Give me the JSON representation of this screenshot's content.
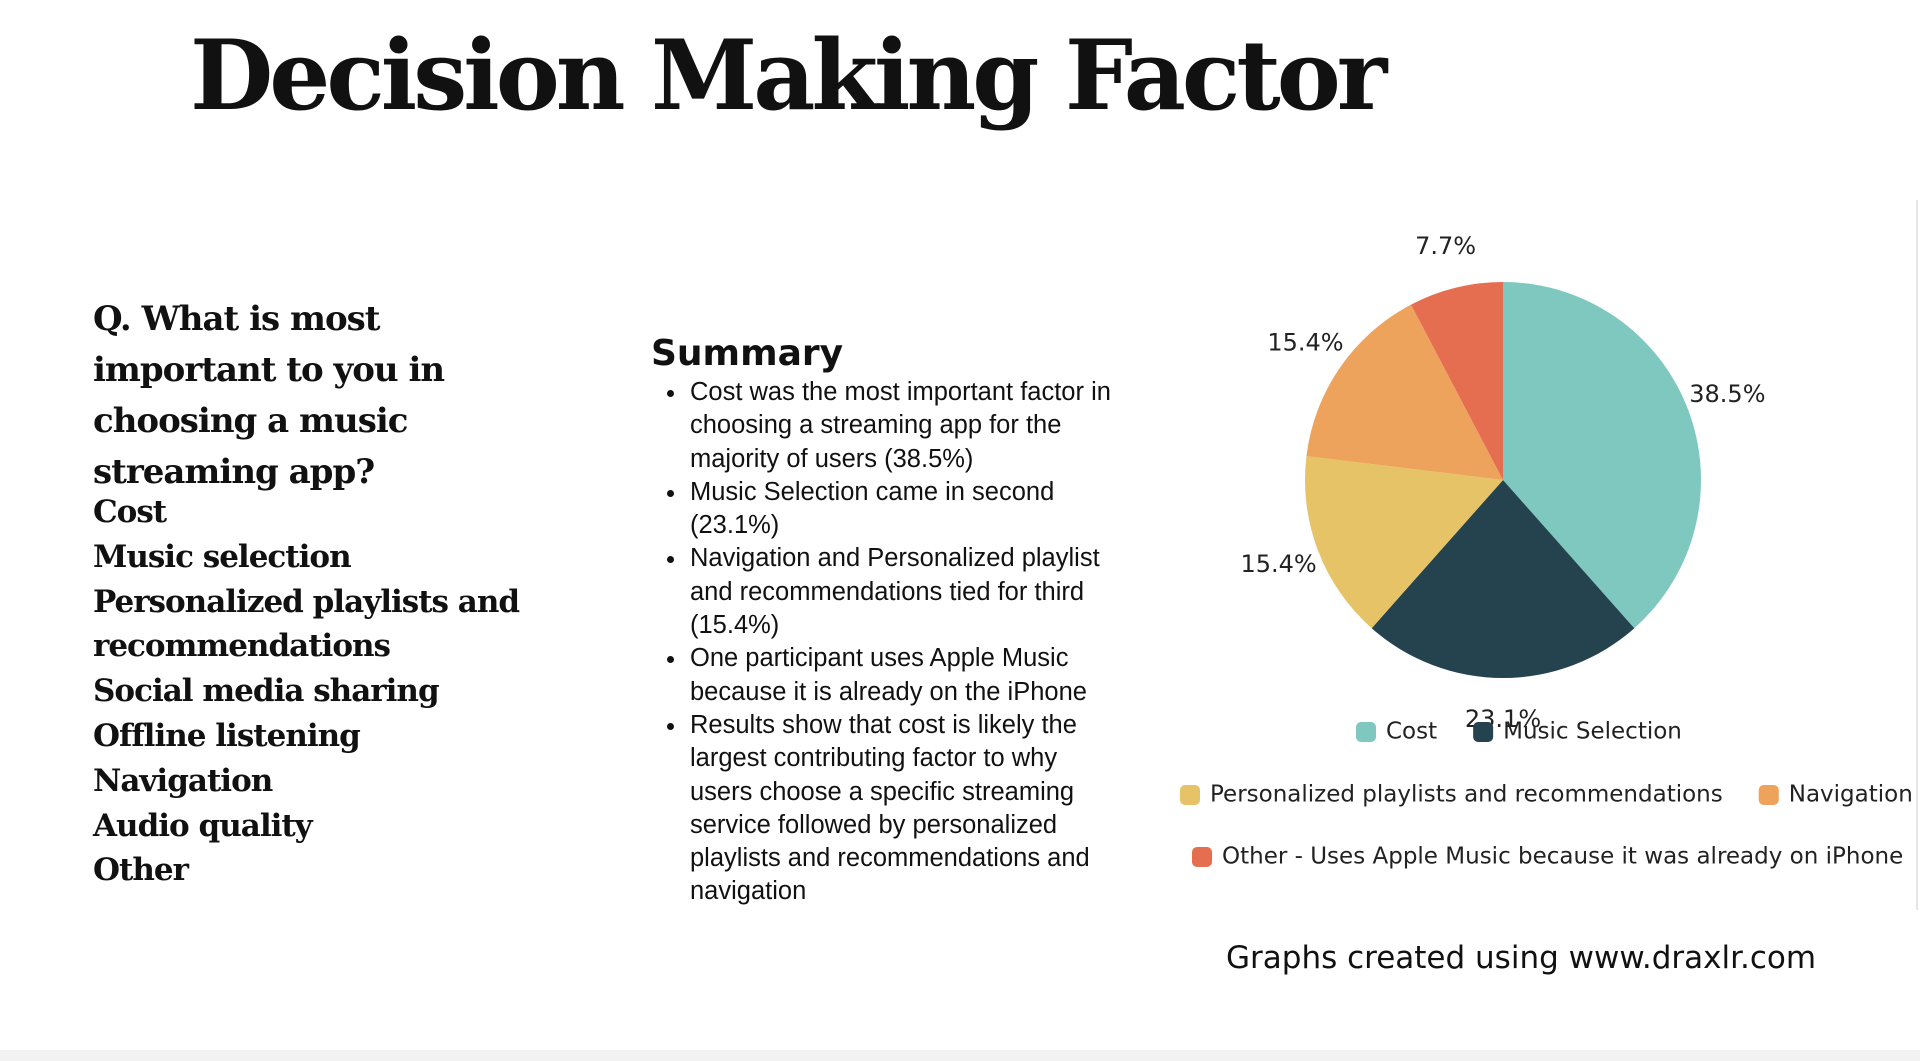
{
  "title": "Decision Making Factor",
  "question": "Q. What is most important to you in choosing a music streaming app?",
  "options": [
    "Cost",
    "Music selection",
    "Personalized playlists and recommendations",
    "Social media sharing",
    "Offline listening",
    "Navigation",
    "Audio quality",
    "Other"
  ],
  "summary": {
    "title": "Summary",
    "bullets": [
      "Cost was the most important factor in choosing a streaming app for the majority of users (38.5%)",
      "Music Selection came in second (23.1%)",
      "Navigation and Personalized playlist and recommendations tied for third (15.4%)",
      "One participant uses Apple Music because it is already on the iPhone",
      "Results show that cost is likely the largest contributing factor to why users choose a specific streaming service followed by personalized playlists and recommendations and navigation"
    ]
  },
  "chart_data": {
    "type": "pie",
    "title": "",
    "legend_placement": "bottom",
    "slices": [
      {
        "label": "Cost",
        "value": 38.5,
        "display": "38.5%",
        "color": "#7ec8c0"
      },
      {
        "label": "Music Selection",
        "value": 23.1,
        "display": "23.1%",
        "color": "#24434f"
      },
      {
        "label": "Personalized playlists and recommendations",
        "value": 15.4,
        "display": "15.4%",
        "color": "#e6c366"
      },
      {
        "label": "Navigation",
        "value": 15.4,
        "display": "15.4%",
        "color": "#eea35d"
      },
      {
        "label": "Other - Uses Apple Music because it was already on  iPhone",
        "value": 7.7,
        "display": "7.7%",
        "color": "#e56e51"
      }
    ]
  },
  "credit": "Graphs created using www.draxlr.com"
}
